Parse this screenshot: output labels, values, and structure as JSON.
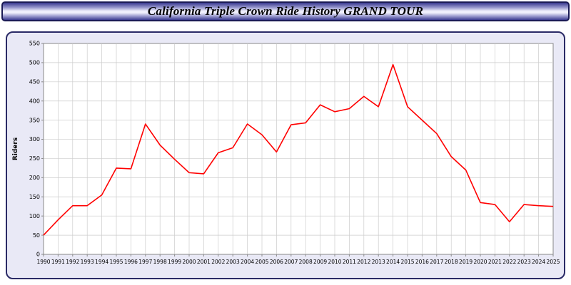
{
  "header": {
    "title": "California Triple Crown Ride History GRAND TOUR"
  },
  "chart_data": {
    "type": "line",
    "title": "California Triple Crown Ride History GRAND TOUR",
    "xlabel": "",
    "ylabel": "Riders",
    "x": [
      1990,
      1991,
      1992,
      1993,
      1994,
      1995,
      1996,
      1997,
      1998,
      1999,
      2000,
      2001,
      2002,
      2003,
      2004,
      2005,
      2006,
      2007,
      2008,
      2009,
      2010,
      2011,
      2012,
      2013,
      2014,
      2015,
      2016,
      2017,
      2018,
      2019,
      2020,
      2021,
      2022,
      2023,
      2024,
      2025
    ],
    "values": [
      50,
      90,
      127,
      127,
      155,
      225,
      223,
      340,
      285,
      248,
      213,
      210,
      265,
      278,
      340,
      312,
      267,
      338,
      343,
      390,
      372,
      380,
      412,
      385,
      495,
      385,
      350,
      315,
      255,
      220,
      135,
      130,
      85,
      130,
      127,
      125
    ],
    "xlim": [
      1990,
      2025
    ],
    "ylim": [
      0,
      550
    ],
    "ytick_step": 50,
    "grid": true,
    "legend_position": "none",
    "line_color": "#ff0000",
    "gridline_color": "#cccccc",
    "plot_bg": "#ffffff",
    "panel_bg": "#e9e9f6",
    "axis_color": "#888888"
  }
}
